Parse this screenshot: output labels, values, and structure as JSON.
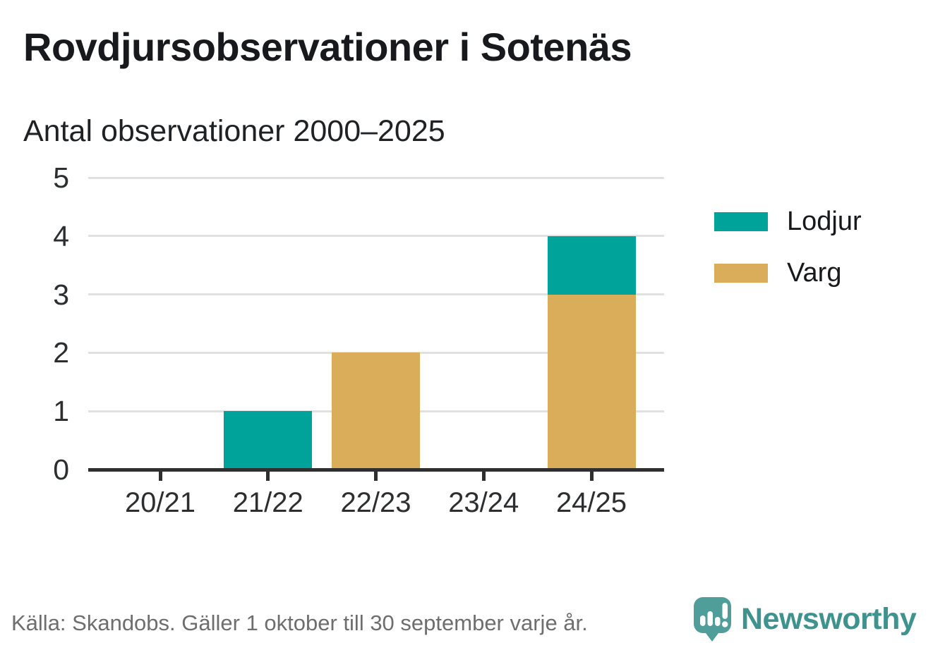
{
  "title": "Rovdjursobservationer i Sotenäs",
  "subtitle": "Antal observationer 2000–2025",
  "colors": {
    "lodjur": "#00a39a",
    "varg": "#daad5b",
    "grid": "#e1e1e1",
    "axis": "#2f2f2f",
    "tick_text": "#2c2e30",
    "title_text": "#17191c",
    "footer_text": "#6e6e6e",
    "brand_bubble": "#4f9e99",
    "brand_text": "#3e938e"
  },
  "chart_data": {
    "type": "bar",
    "stacked": true,
    "categories": [
      "20/21",
      "21/22",
      "22/23",
      "23/24",
      "24/25"
    ],
    "series": [
      {
        "name": "Lodjur",
        "color_key": "lodjur",
        "values": [
          0,
          1,
          0,
          0,
          1
        ]
      },
      {
        "name": "Varg",
        "color_key": "varg",
        "values": [
          0,
          0,
          2,
          0,
          3
        ]
      }
    ],
    "title": "Rovdjursobservationer i Sotenäs",
    "subtitle": "Antal observationer 2000–2025",
    "xlabel": "",
    "ylabel": "",
    "ylim": [
      0,
      5
    ],
    "yticks": [
      0,
      1,
      2,
      3,
      4,
      5
    ],
    "grid": true,
    "legend_position": "right",
    "totals_by_category": {
      "20/21": 0,
      "21/22": 1,
      "22/23": 2,
      "23/24": 0,
      "24/25": 4
    }
  },
  "legend": {
    "items": [
      {
        "label": "Lodjur",
        "color_key": "lodjur"
      },
      {
        "label": "Varg",
        "color_key": "varg"
      }
    ]
  },
  "footer": {
    "source_text": "Källa: Skandobs. Gäller 1 oktober till 30 september varje år."
  },
  "branding": {
    "logo_text": "Newsworthy",
    "logo_icon": "newsworthy-speech-bubble-chart-icon"
  }
}
